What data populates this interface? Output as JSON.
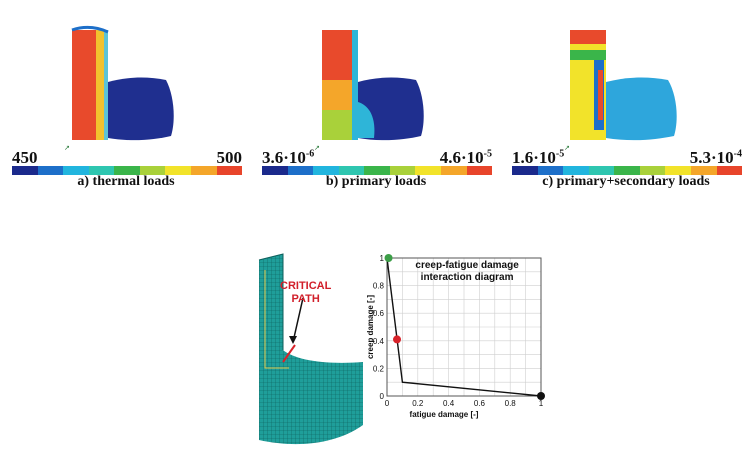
{
  "panels": [
    {
      "min_label": "450",
      "max_label": "500",
      "caption": "a) thermal loads"
    },
    {
      "min_label": "3.6·10",
      "min_exp": "-6",
      "max_label": "4.6·10",
      "max_exp": "-5",
      "caption": "b) primary loads"
    },
    {
      "min_label": "1.6·10",
      "min_exp": "-5",
      "max_label": "5.3·10",
      "max_exp": "-4",
      "caption": "c) primary+secondary loads"
    }
  ],
  "colorbar": [
    "#1b2a8c",
    "#1d6fc9",
    "#21b5de",
    "#2ec6b0",
    "#3ab54a",
    "#a9d13a",
    "#f2e32a",
    "#f4a62a",
    "#e8452b"
  ],
  "mesh": {
    "critical_label_line1": "CRITICAL",
    "critical_label_line2": "PATH",
    "mesh_color": "#1f9e9a"
  },
  "chart_data": {
    "type": "line",
    "title_line1": "creep-fatigue damage",
    "title_line2": "interaction diagram",
    "xlabel": "fatigue damage [-]",
    "ylabel": "creep damage [-]",
    "xlim": [
      0,
      1
    ],
    "ylim": [
      0,
      1
    ],
    "xticks": [
      0,
      0.2,
      0.4,
      0.6,
      0.8,
      1
    ],
    "xtick_labels": [
      "0",
      "0.2",
      "0.4",
      "0.6",
      "0.8",
      "1"
    ],
    "yticks": [
      0,
      0.2,
      0.4,
      0.6,
      0.8,
      1
    ],
    "ytick_labels": [
      "0",
      "0.2",
      "0.4",
      "0.6",
      "0.8",
      "1"
    ],
    "envelope": {
      "x": [
        0,
        0.1,
        1
      ],
      "y": [
        1,
        0.1,
        0
      ]
    },
    "points": [
      {
        "x": 0.01,
        "y": 1.0,
        "color": "#3c9e47"
      },
      {
        "x": 0.065,
        "y": 0.41,
        "color": "#d8232a"
      },
      {
        "x": 1.0,
        "y": 0.0,
        "color": "#111111"
      }
    ]
  }
}
